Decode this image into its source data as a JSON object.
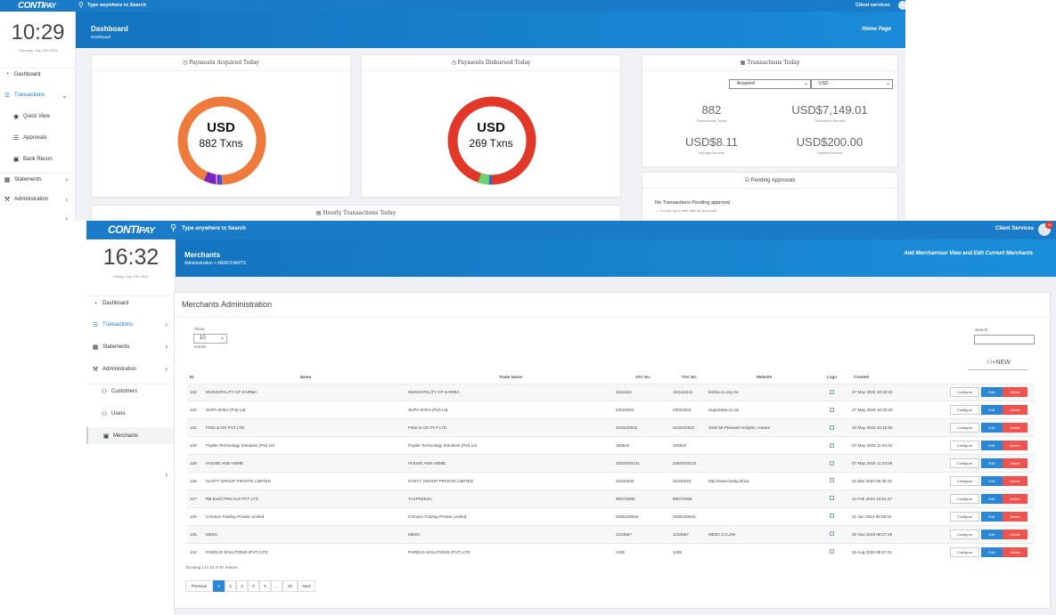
{
  "back": {
    "search_placeholder": "Type anywhere to Search",
    "client_services": "Client services",
    "time": "10:29",
    "date": "Thursday, July 11th 2024",
    "page_title": "Dashboard",
    "breadcrumb": "Dashboard",
    "home_page": "Home Page",
    "nav": {
      "dashboard": "Dashboard",
      "transactions": "Transactions",
      "quick_view": "Quick View",
      "approvals": "Approvals",
      "bank_recon": "Bank Recon",
      "statements": "Statements",
      "administration": "Administration"
    },
    "acquired": {
      "title": "Payments Acquired Today",
      "currency": "USD",
      "txns": "882 Txns"
    },
    "disbursed": {
      "title": "Payments Disbursed Today",
      "currency": "USD",
      "txns": "269 Txns"
    },
    "tx_today": {
      "title": "Transactions Today",
      "select_type": "Acquired",
      "select_currency": "USD",
      "count": "882",
      "count_label": "Transactions Today",
      "amount": "USD$7,149.01",
      "amount_label": "Transacted Amount",
      "avg": "USD$8.11",
      "avg_label": "Average Amount",
      "highest": "USD$200.00",
      "highest_label": "Highest Amount"
    },
    "pending": {
      "title": "Pending Approvals",
      "text": "No Transactions Pending approval",
      "sub": "— You are up to date with all approvals"
    },
    "hourly_title": "Hourly Transactions Today",
    "colors": {
      "acquired": "#ee7b3b",
      "disbursed": "#e2382a",
      "purple": "#7a22c2",
      "green": "#6cd46c",
      "blue": "#3a5fd8"
    }
  },
  "front": {
    "search_placeholder": "Type anywhere to Search",
    "client_services": "Client Services",
    "badge": "19",
    "time": "16:32",
    "date": "Friday, July 12th 2024",
    "page_title": "Merchants",
    "breadcrumb": "Administration > MERCHANTS",
    "hint": "Add Merchantsor View and Edit Current Merchants",
    "nav": {
      "dashboard": "Dashboard",
      "transactions": "Transactions",
      "statements": "Statements",
      "administration": "Administration",
      "customers": "Customers",
      "users": "Users",
      "merchants": "Merchants"
    },
    "panel_title": "Merchants Administration",
    "show_label": "Show",
    "show_value": "10",
    "entries_label": "entries",
    "search_label": "Search:",
    "new_button": "NEW",
    "columns": [
      "ID",
      "Name",
      "Trade Name",
      "VAT No.",
      "TAX No.",
      "Website",
      "Logo",
      "Created",
      ""
    ],
    "rows": [
      {
        "id": "133",
        "name": "MUNICIPALITY OF KARIBA",
        "trade": "MUNICIPALITY OF KARIBA",
        "vat": "11111111",
        "tax": "1111111111",
        "web": "kariba.co.org.zw",
        "created": "27 May 2024 10:40:22"
      },
      {
        "id": "132",
        "name": "SUPA SOKA (Pvt) Ltd",
        "trade": "SUPA SOKA (Pvt) Ltd",
        "vat": "23022024",
        "tax": "23022024",
        "web": "SupaSoka.co.zw",
        "created": "27 May 2024 10:25:33"
      },
      {
        "id": "131",
        "name": "FIND & GO PVT LTD",
        "trade": "FIND & GO PVT LTD",
        "vat": "22202/2022",
        "tax": "22202/2022",
        "web": "1040 Mt Pleasant Heights, Harare",
        "created": "10 May 2024 10:15:52"
      },
      {
        "id": "130",
        "name": "Paylite Technology Solutions (Pvt) Ltd",
        "trade": "Paylite Technology Solutions (Pvt) Ltd",
        "vat": "183644",
        "tax": "183644",
        "web": "",
        "created": "07 May 2024 11:44:31"
      },
      {
        "id": "129",
        "name": "HOUSE AND HOME",
        "trade": "HOUSE AND HOME",
        "vat": "22520/20121",
        "tax": "22520/20121",
        "web": "",
        "created": "07 May 2024 11:23:05"
      },
      {
        "id": "128",
        "name": "HASTY GROUP PRIVATE LIMITED",
        "trade": "HASTY GROUP PRIVATE LIMITED",
        "vat": "31042023",
        "tax": "31042023",
        "web": "http://www.hasty.africa",
        "created": "04 Mar 2024 06:36:40"
      },
      {
        "id": "127",
        "name": "RB ELECTRICALS PVT LTD",
        "trade": "TAXFREEZA",
        "vat": "8807/2005",
        "tax": "8807/2005",
        "web": "",
        "created": "14 Feb 2024 10:51:27"
      },
      {
        "id": "126",
        "name": "Crimson Trading Private Limited",
        "trade": "Crimson Trading Private Limited",
        "vat": "0200109615",
        "tax": "0200109615",
        "web": "",
        "created": "31 Jan 2024 05:05:04"
      },
      {
        "id": "125",
        "name": "MEDC",
        "trade": "MEDC",
        "vat": "1234567",
        "tax": "1234567",
        "web": "MEDC.CO.ZW",
        "created": "02 Nov 2023 08:27:25"
      },
      {
        "id": "124",
        "name": "PARDUS SOLUTIONS (PVT) LTD",
        "trade": "PARDUS SOLUTIONS (PVT) LTD",
        "vat": "1195",
        "tax": "1195",
        "web": "",
        "created": "18 Aug 2023 09:57:21"
      }
    ],
    "buttons": {
      "configure": "Configure",
      "edit": "Edit",
      "delete": "Delete"
    },
    "info": "Showing 1 to 10 of 97 entries",
    "pagination": [
      "Previous",
      "1",
      "2",
      "3",
      "4",
      "5",
      "...",
      "10",
      "Next"
    ],
    "colors": {
      "brand": "#1a7cc8",
      "edit": "#2b87d3",
      "delete": "#ef5350"
    }
  }
}
